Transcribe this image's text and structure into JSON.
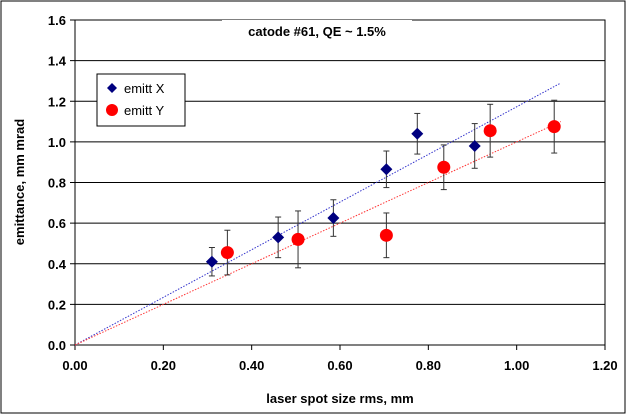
{
  "chart_data": {
    "type": "scatter",
    "title": "catode #61, QE ~ 1.5%",
    "xlabel": "laser spot size rms, mm",
    "ylabel": "emittance, mm mrad",
    "xlim": [
      0,
      1.2
    ],
    "ylim": [
      0,
      1.6
    ],
    "x_ticks": [
      "0.00",
      "0.20",
      "0.40",
      "0.60",
      "0.80",
      "1.00",
      "1.20"
    ],
    "y_ticks": [
      "0.0",
      "0.2",
      "0.4",
      "0.6",
      "0.8",
      "1.0",
      "1.2",
      "1.4",
      "1.6"
    ],
    "grid": "horizontal",
    "legend_position": "upper-left",
    "series": [
      {
        "name": "emitt X",
        "marker": "diamond",
        "color": "#00007f",
        "points": [
          {
            "x": 0.31,
            "y": 0.41,
            "err": 0.07
          },
          {
            "x": 0.46,
            "y": 0.53,
            "err": 0.1
          },
          {
            "x": 0.585,
            "y": 0.625,
            "err": 0.09
          },
          {
            "x": 0.705,
            "y": 0.865,
            "err": 0.09
          },
          {
            "x": 0.775,
            "y": 1.04,
            "err": 0.1
          },
          {
            "x": 0.905,
            "y": 0.98,
            "err": 0.11
          }
        ],
        "trendline": {
          "x": [
            0,
            1.1
          ],
          "y": [
            0,
            1.29
          ],
          "color": "#3333cc"
        }
      },
      {
        "name": "emitt Y",
        "marker": "circle",
        "color": "#ff0000",
        "points": [
          {
            "x": 0.345,
            "y": 0.455,
            "err": 0.11
          },
          {
            "x": 0.505,
            "y": 0.52,
            "err": 0.14
          },
          {
            "x": 0.705,
            "y": 0.54,
            "err": 0.11
          },
          {
            "x": 0.835,
            "y": 0.875,
            "err": 0.11
          },
          {
            "x": 0.94,
            "y": 1.055,
            "err": 0.13
          },
          {
            "x": 1.085,
            "y": 1.075,
            "err": 0.13
          }
        ],
        "trendline": {
          "x": [
            0,
            1.1
          ],
          "y": [
            0,
            1.1
          ],
          "color": "#ff3333"
        }
      }
    ]
  }
}
